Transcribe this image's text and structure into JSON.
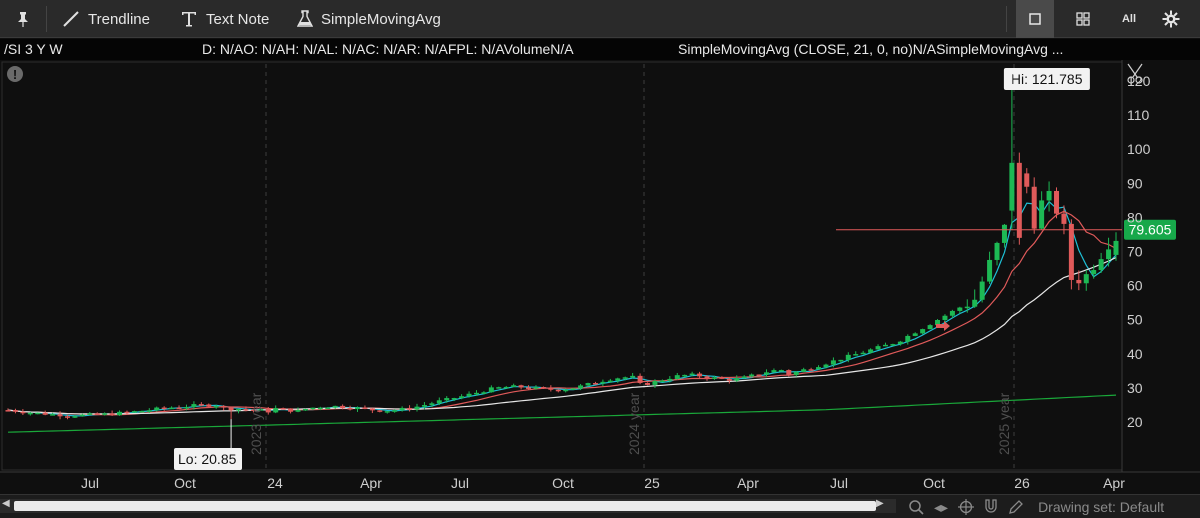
{
  "toolbar": {
    "trendline_label": "Trendline",
    "textnote_label": "Text Note",
    "sma_label": "SimpleMovingAvg",
    "all_label": "All"
  },
  "status": {
    "symbol": "/SI 3 Y W",
    "ohlc": "D: N/AO: N/AH: N/AL: N/AC: N/AR: N/AFPL: N/AVolumeN/A",
    "study": "SimpleMovingAvg (CLOSE, 21, 0, no)N/ASimpleMovingAvg ..."
  },
  "chart_data": {
    "type": "candlestick",
    "y_ticks": [
      20,
      30,
      40,
      50,
      60,
      70,
      80,
      90,
      100,
      110,
      120
    ],
    "x_ticks": [
      "Jul",
      "Oct",
      "24",
      "Apr",
      "Jul",
      "Oct",
      "25",
      "Apr",
      "Jul",
      "Oct",
      "26",
      "Apr"
    ],
    "year_markers": [
      "2023 year",
      "2024 year",
      "2025 year"
    ],
    "hi_label": "Hi: 121.785",
    "lo_label": "Lo: 20.85",
    "hi": 121.785,
    "lo": 20.85,
    "last_price_label": "79.605",
    "last_price": 79.605,
    "colors": {
      "up": "#1db954",
      "down": "#e05a5a",
      "sma_fast": "#1ec0d6",
      "sma_mid": "#e05a5a",
      "sma_slow": "#e6e6e6",
      "sma_long": "#1aa83a",
      "price_badge": "#17a84a"
    }
  },
  "footer": {
    "drawing_set": "Drawing set: Default"
  }
}
